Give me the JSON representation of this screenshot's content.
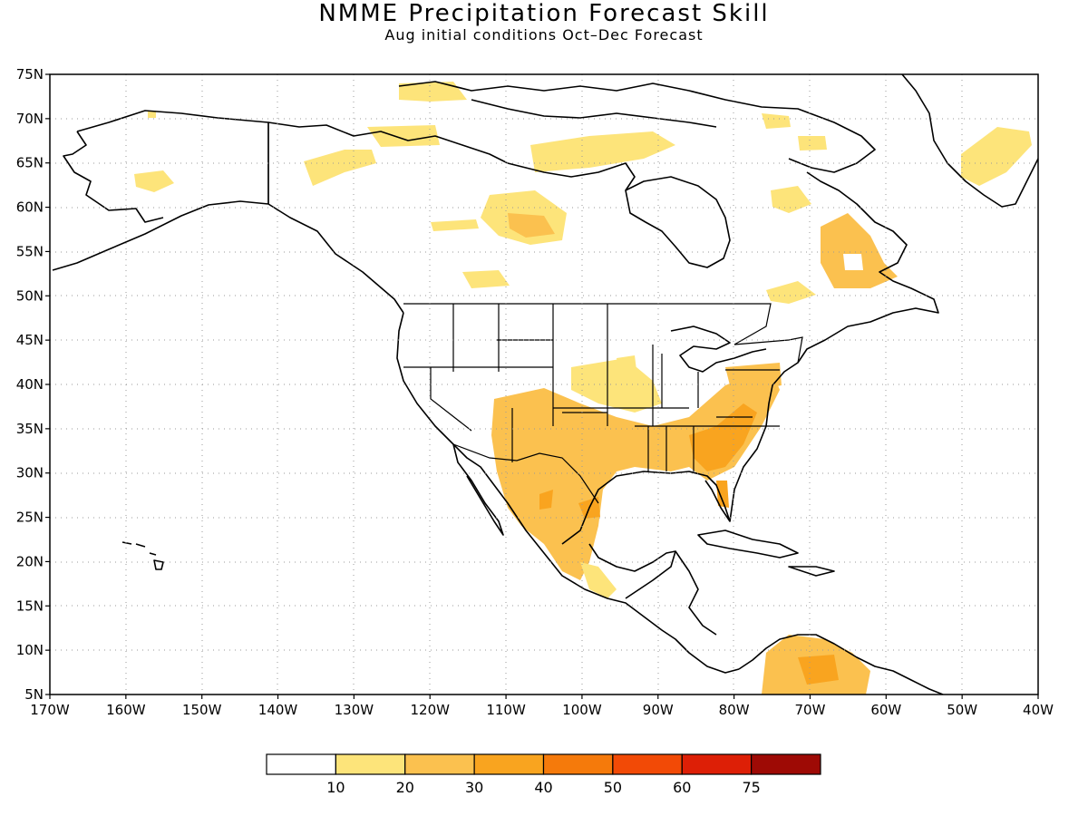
{
  "title": "NMME Precipitation Forecast Skill",
  "subtitle": "Aug initial conditions  Oct–Dec Forecast",
  "map": {
    "lon_range": [
      -170,
      -40
    ],
    "lat_range": [
      5,
      75
    ],
    "lat_ticks": [
      "75N",
      "70N",
      "65N",
      "60N",
      "55N",
      "50N",
      "45N",
      "40N",
      "35N",
      "30N",
      "25N",
      "20N",
      "15N",
      "10N",
      "5N"
    ],
    "lon_ticks": [
      "170W",
      "160W",
      "150W",
      "140W",
      "130W",
      "120W",
      "110W",
      "100W",
      "90W",
      "80W",
      "70W",
      "60W",
      "50W",
      "40W"
    ],
    "grid": true,
    "land_outline_color": "#000000",
    "skill_colors": [
      "#ffffff",
      "#fde47a",
      "#fbc14f",
      "#f9a41f",
      "#f57a0b",
      "#f24a06",
      "#dd1f06",
      "#9e0a05"
    ]
  },
  "colorbar": {
    "labels": [
      "10",
      "20",
      "30",
      "40",
      "50",
      "60",
      "75"
    ]
  }
}
